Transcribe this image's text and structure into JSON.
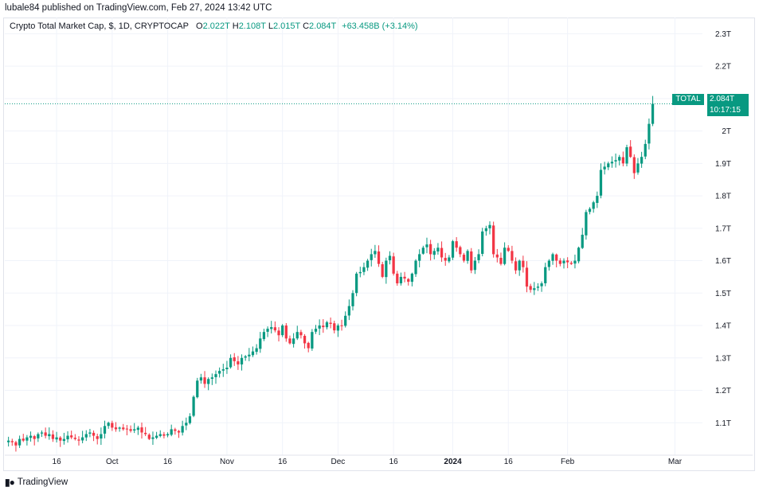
{
  "header": {
    "published_text": "lubale84 published on TradingView.com, Feb 27, 2024 13:42 UTC"
  },
  "legend": {
    "symbol": "Crypto Total Market Cap, $, 1D, CRYPTOCAP",
    "open_label": "O",
    "open_value": "2.022T",
    "high_label": "H",
    "high_value": "2.108T",
    "low_label": "L",
    "low_value": "2.015T",
    "close_label": "C",
    "close_value": "2.084T",
    "change": "+63.458B (+3.14%)"
  },
  "price_tag": {
    "name": "TOTAL",
    "price": "2.084T",
    "countdown": "10:17:15"
  },
  "footer": {
    "brand": "TradingView"
  },
  "colors": {
    "up": "#089981",
    "down": "#f23645",
    "grid": "#f0f3fa",
    "text": "#131722"
  },
  "chart_data": {
    "type": "candlestick",
    "y_unit": "T",
    "ylim": [
      1.0,
      2.35
    ],
    "y_ticks": [
      "2.3T",
      "2.2T",
      "2.1T",
      "2T",
      "1.9T",
      "1.8T",
      "1.7T",
      "1.6T",
      "1.5T",
      "1.4T",
      "1.3T",
      "1.2T",
      "1.1T"
    ],
    "y_tick_values": [
      2.3,
      2.2,
      2.1,
      2.0,
      1.9,
      1.8,
      1.7,
      1.6,
      1.5,
      1.4,
      1.3,
      1.2,
      1.1
    ],
    "x_ticks": [
      {
        "label": "16",
        "day": 15
      },
      {
        "label": "Oct",
        "day": 30
      },
      {
        "label": "16",
        "day": 45
      },
      {
        "label": "Nov",
        "day": 61
      },
      {
        "label": "16",
        "day": 76
      },
      {
        "label": "Dec",
        "day": 91
      },
      {
        "label": "16",
        "day": 106
      },
      {
        "label": "2024",
        "day": 122,
        "bold": true
      },
      {
        "label": "16",
        "day": 137
      },
      {
        "label": "Feb",
        "day": 153
      },
      {
        "label": "Mar",
        "day": 182
      }
    ],
    "x_domain_days": [
      1,
      189
    ],
    "close_values": [
      1.045,
      1.04,
      1.03,
      1.05,
      1.045,
      1.055,
      1.06,
      1.05,
      1.065,
      1.07,
      1.06,
      1.065,
      1.05,
      1.055,
      1.045,
      1.05,
      1.06,
      1.055,
      1.05,
      1.045,
      1.055,
      1.065,
      1.07,
      1.06,
      1.05,
      1.065,
      1.09,
      1.1,
      1.085,
      1.08,
      1.085,
      1.08,
      1.08,
      1.075,
      1.08,
      1.085,
      1.07,
      1.065,
      1.05,
      1.055,
      1.06,
      1.065,
      1.06,
      1.065,
      1.08,
      1.075,
      1.07,
      1.09,
      1.1,
      1.12,
      1.18,
      1.23,
      1.24,
      1.22,
      1.235,
      1.24,
      1.25,
      1.26,
      1.265,
      1.27,
      1.3,
      1.29,
      1.28,
      1.3,
      1.305,
      1.31,
      1.32,
      1.33,
      1.36,
      1.38,
      1.39,
      1.395,
      1.385,
      1.37,
      1.4,
      1.36,
      1.345,
      1.36,
      1.38,
      1.37,
      1.345,
      1.33,
      1.38,
      1.39,
      1.4,
      1.395,
      1.41,
      1.405,
      1.385,
      1.4,
      1.4,
      1.43,
      1.46,
      1.5,
      1.56,
      1.565,
      1.58,
      1.6,
      1.62,
      1.63,
      1.59,
      1.55,
      1.6,
      1.615,
      1.56,
      1.53,
      1.55,
      1.545,
      1.535,
      1.56,
      1.6,
      1.62,
      1.64,
      1.65,
      1.62,
      1.63,
      1.64,
      1.61,
      1.6,
      1.61,
      1.66,
      1.64,
      1.62,
      1.6,
      1.63,
      1.57,
      1.6,
      1.62,
      1.69,
      1.7,
      1.71,
      1.62,
      1.61,
      1.59,
      1.64,
      1.63,
      1.6,
      1.57,
      1.6,
      1.58,
      1.52,
      1.51,
      1.515,
      1.52,
      1.53,
      1.58,
      1.6,
      1.62,
      1.6,
      1.59,
      1.6,
      1.595,
      1.59,
      1.6,
      1.64,
      1.68,
      1.75,
      1.76,
      1.78,
      1.8,
      1.88,
      1.89,
      1.9,
      1.905,
      1.91,
      1.92,
      1.9,
      1.95,
      1.92,
      1.87,
      1.9,
      1.92,
      1.96,
      2.022,
      2.084
    ],
    "last_close": 2.084,
    "last_open": 2.022,
    "last_high": 2.108,
    "last_low": 2.015
  }
}
